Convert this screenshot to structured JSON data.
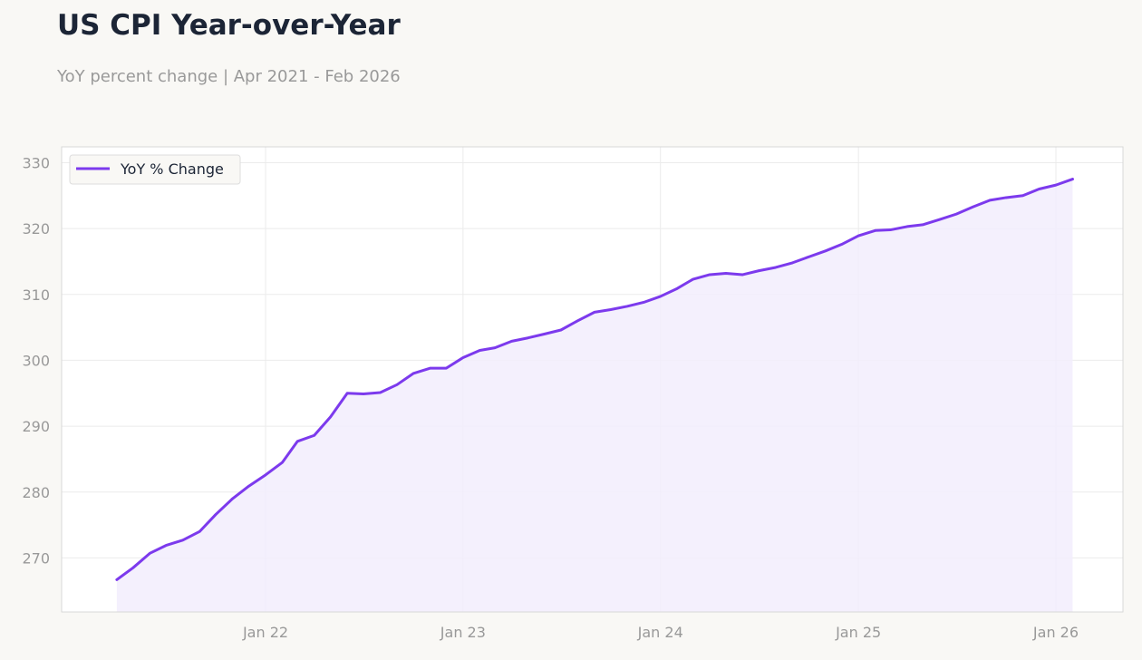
{
  "header": {
    "title": "US CPI Year-over-Year",
    "subtitle": "YoY percent change | Apr 2021 - Feb 2026"
  },
  "colors": {
    "line": "#7c3aed",
    "fill": "#f2edfd",
    "grid": "#ebebeb",
    "axis_text": "#999999",
    "frame": "#d8d8d8",
    "background": "#f9f8f5",
    "plot_background": "#ffffff"
  },
  "chart_data": {
    "type": "area",
    "title": "US CPI Year-over-Year",
    "subtitle": "YoY percent change | Apr 2021 - Feb 2026",
    "xlabel": "",
    "ylabel": "",
    "x_start": "2021-04",
    "x_end": "2026-02",
    "xlim": [
      "2020-12-20",
      "2026-05-05"
    ],
    "ylim": [
      261.8,
      332.4
    ],
    "x_ticks": [
      {
        "date": "2022-01",
        "label": "Jan 22"
      },
      {
        "date": "2023-01",
        "label": "Jan 23"
      },
      {
        "date": "2024-01",
        "label": "Jan 24"
      },
      {
        "date": "2025-01",
        "label": "Jan 25"
      },
      {
        "date": "2026-01",
        "label": "Jan 26"
      }
    ],
    "y_ticks": [
      270,
      280,
      290,
      300,
      310,
      320,
      330
    ],
    "grid": true,
    "legend": {
      "position": "top-left",
      "entries": [
        "YoY % Change"
      ]
    },
    "series": [
      {
        "name": "YoY % Change",
        "x": [
          "2021-04",
          "2021-05",
          "2021-06",
          "2021-07",
          "2021-08",
          "2021-09",
          "2021-10",
          "2021-11",
          "2021-12",
          "2022-01",
          "2022-02",
          "2022-03",
          "2022-04",
          "2022-05",
          "2022-06",
          "2022-07",
          "2022-08",
          "2022-09",
          "2022-10",
          "2022-11",
          "2022-12",
          "2023-01",
          "2023-02",
          "2023-03",
          "2023-04",
          "2023-05",
          "2023-06",
          "2023-07",
          "2023-08",
          "2023-09",
          "2023-10",
          "2023-11",
          "2023-12",
          "2024-01",
          "2024-02",
          "2024-03",
          "2024-04",
          "2024-05",
          "2024-06",
          "2024-07",
          "2024-08",
          "2024-09",
          "2024-10",
          "2024-11",
          "2024-12",
          "2025-01",
          "2025-02",
          "2025-03",
          "2025-04",
          "2025-05",
          "2025-06",
          "2025-07",
          "2025-08",
          "2025-09",
          "2025-10",
          "2025-11",
          "2025-12",
          "2026-01",
          "2026-02"
        ],
        "values": [
          266.7,
          268.5,
          270.7,
          271.9,
          272.7,
          274.0,
          276.6,
          279.0,
          280.9,
          282.6,
          284.5,
          287.7,
          288.6,
          291.4,
          295.0,
          294.9,
          295.1,
          296.3,
          298.0,
          298.8,
          298.8,
          300.4,
          301.5,
          301.9,
          302.9,
          303.4,
          304.0,
          304.6,
          306.0,
          307.3,
          307.7,
          308.2,
          308.8,
          309.7,
          310.9,
          312.3,
          313.0,
          313.2,
          313.0,
          313.6,
          314.1,
          314.8,
          315.7,
          316.6,
          317.6,
          318.9,
          319.7,
          319.8,
          320.3,
          320.6,
          321.4,
          322.2,
          323.3,
          324.3,
          324.7,
          325.0,
          326.0,
          326.6,
          327.5
        ]
      }
    ]
  }
}
